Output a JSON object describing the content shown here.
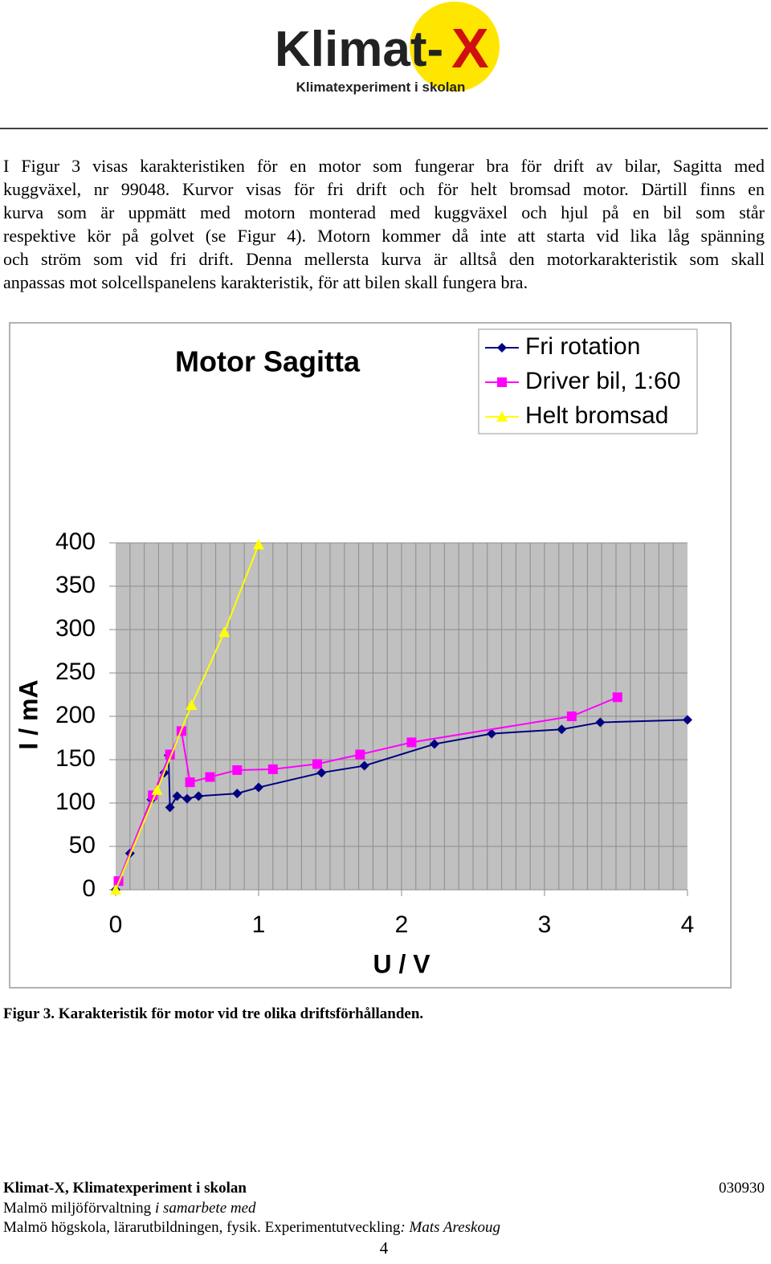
{
  "header": {
    "logo_main": "Klimat-",
    "logo_accent": "X",
    "logo_subtitle": "Klimatexperiment i skolan"
  },
  "paragraph": [
    "I Figur 3 visas karakteristiken för en motor som fungerar bra för drift av bilar, Sagitta med",
    "kuggväxel, nr 99048. Kurvor visas för fri drift och för helt bromsad motor. Därtill finns en",
    "kurva som är uppmätt med motorn monterad med kuggväxel och hjul på en bil som står",
    "respektive kör på golvet (se Figur 4). Motorn kommer då inte att starta vid lika låg spänning",
    "och ström som vid fri drift. Denna mellersta kurva är alltså den motorkarakteristik som skall",
    "anpassas mot solcellspanelens karakteristik, för att bilen skall fungera bra."
  ],
  "chart_data": {
    "type": "line",
    "title": "Motor Sagitta",
    "x_label": "U / V",
    "y_label": "I / mA",
    "xlim": [
      0,
      4
    ],
    "ylim": [
      0,
      400
    ],
    "xticks": [
      0,
      1,
      2,
      3,
      4
    ],
    "yticks": [
      0,
      50,
      100,
      150,
      200,
      250,
      300,
      350,
      400
    ],
    "x_grid_step": 0.1,
    "grid": true,
    "legend": "top-right",
    "series": [
      {
        "name": "Fri rotation",
        "color": "#000080",
        "marker": "diamond",
        "x": [
          0,
          0.1,
          0.25,
          0.34,
          0.37,
          0.38,
          0.43,
          0.5,
          0.58,
          0.85,
          1.0,
          1.44,
          1.74,
          2.23,
          2.63,
          3.12,
          3.39,
          4.0
        ],
        "values": [
          0,
          42,
          104,
          135,
          155,
          95,
          108,
          105,
          108,
          111,
          118,
          135,
          143,
          168,
          180,
          185,
          193,
          196
        ]
      },
      {
        "name": "Driver bil, 1:60",
        "color": "#ff00ff",
        "marker": "square",
        "x": [
          0.02,
          0.26,
          0.38,
          0.46,
          0.52,
          0.66,
          0.85,
          1.1,
          1.41,
          1.71,
          2.07,
          3.19,
          3.51
        ],
        "values": [
          10,
          109,
          156,
          183,
          124,
          130,
          138,
          139,
          145,
          156,
          170,
          200,
          222
        ]
      },
      {
        "name": "Helt bromsad",
        "color": "#ffff00",
        "marker": "triangle",
        "x": [
          0,
          0.29,
          0.53,
          0.76,
          1.0
        ],
        "values": [
          0,
          115,
          213,
          297,
          398
        ]
      }
    ]
  },
  "caption": "Figur 3. Karakteristik för motor vid tre olika driftsförhållanden.",
  "footer": {
    "org": "Klimat-X, Klimatexperiment i skolan",
    "date": "030930",
    "line2_plain": "Malmö miljöförvaltning ",
    "line2_italic": "i samarbete med",
    "line3_plain": "Malmö högskola, lärarutbildningen, fysik. Experimentutveckling",
    "line3_italic": ": Mats Areskoug",
    "page_number": "4"
  }
}
